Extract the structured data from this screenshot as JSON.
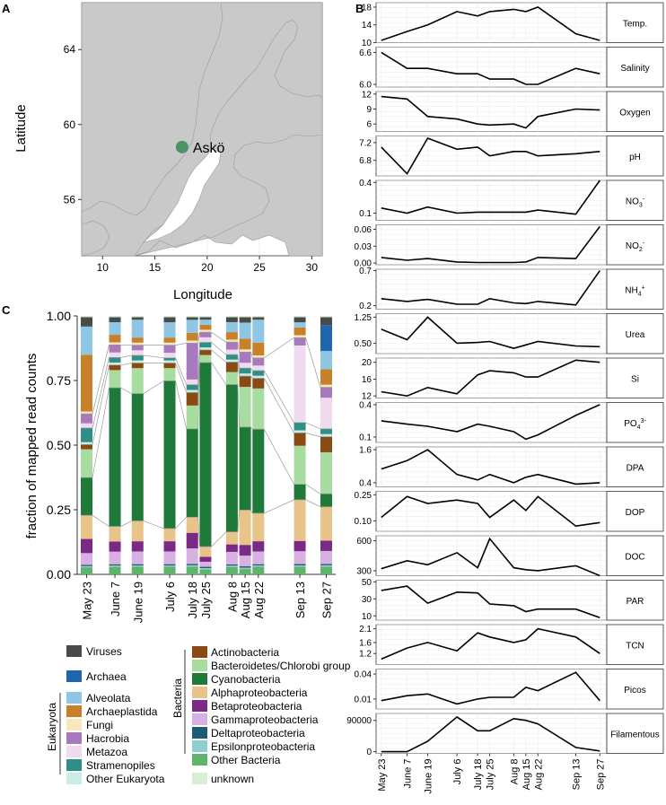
{
  "panels": {
    "a": "A",
    "b": "B",
    "c": "C"
  },
  "map": {
    "xlabel": "Longitude",
    "ylabel": "Latitude",
    "xticks": [
      10,
      15,
      20,
      25,
      30
    ],
    "yticks": [
      56,
      60,
      64
    ],
    "site_label": "Askö",
    "site_lon": 17.6,
    "site_lat": 58.8,
    "site_color": "#3d8c5a"
  },
  "dates": [
    "May 23",
    "June 7",
    "June 19",
    "July 6",
    "July 18",
    "July 25",
    "Aug 8",
    "Aug 15",
    "Aug 22",
    "Sep 13",
    "Sep 27"
  ],
  "chart_data": [
    {
      "type": "bar",
      "stacked": true,
      "title": "",
      "ylabel": "fraction of mapped read counts",
      "ylim": [
        0,
        1
      ],
      "yticks": [
        "0.00",
        "0.25",
        "0.50",
        "0.75",
        "1.00"
      ],
      "categories": [
        "May 23",
        "June 7",
        "June 19",
        "July 6",
        "July 18",
        "July 25",
        "Aug 8",
        "Aug 15",
        "Aug 22",
        "Sep 13",
        "Sep 27"
      ],
      "series": [
        {
          "name": "Other Bacteria",
          "color": "#5fb36a",
          "values": [
            0.03,
            0.03,
            0.03,
            0.03,
            0.03,
            0.02,
            0.03,
            0.02,
            0.03,
            0.03,
            0.03
          ]
        },
        {
          "name": "Epsilonproteobacteria",
          "color": "#8fcfd0",
          "values": [
            0.005,
            0.005,
            0.005,
            0.005,
            0.005,
            0.005,
            0.005,
            0.005,
            0.005,
            0.005,
            0.005
          ]
        },
        {
          "name": "Deltaproteobacteria",
          "color": "#1d5a73",
          "values": [
            0.005,
            0.005,
            0.005,
            0.005,
            0.005,
            0.005,
            0.005,
            0.005,
            0.005,
            0.005,
            0.005
          ]
        },
        {
          "name": "Gammaproteobacteria",
          "color": "#d7b1e2",
          "values": [
            0.05,
            0.05,
            0.05,
            0.05,
            0.06,
            0.02,
            0.05,
            0.04,
            0.05,
            0.05,
            0.05
          ]
        },
        {
          "name": "Betaproteobacteria",
          "color": "#7a2a86",
          "values": [
            0.06,
            0.04,
            0.04,
            0.04,
            0.06,
            0.02,
            0.03,
            0.04,
            0.04,
            0.04,
            0.04
          ]
        },
        {
          "name": "Alphaproteobacteria",
          "color": "#e8c38a",
          "values": [
            0.1,
            0.06,
            0.08,
            0.05,
            0.06,
            0.04,
            0.05,
            0.13,
            0.11,
            0.16,
            0.13
          ]
        },
        {
          "name": "Cyanobacteria",
          "color": "#1f7a3a",
          "values": [
            0.16,
            0.55,
            0.5,
            0.58,
            0.34,
            0.73,
            0.59,
            0.31,
            0.33,
            0.06,
            0.05
          ]
        },
        {
          "name": "Bacteroidetes/Chlorobi group",
          "color": "#a8dca0",
          "values": [
            0.12,
            0.07,
            0.1,
            0.05,
            0.09,
            0.03,
            0.05,
            0.15,
            0.16,
            0.15,
            0.16
          ]
        },
        {
          "name": "Actinobacteria",
          "color": "#8a4b12",
          "values": [
            0.02,
            0.02,
            0.02,
            0.02,
            0.05,
            0.02,
            0.04,
            0.04,
            0.04,
            0.05,
            0.06
          ]
        },
        {
          "name": "Other Eukaryota",
          "color": "#c9ece7",
          "values": [
            0.01,
            0.01,
            0.01,
            0.01,
            0.01,
            0.01,
            0.01,
            0.01,
            0.01,
            0.01,
            0.01
          ]
        },
        {
          "name": "Stramenopiles",
          "color": "#2e8f86",
          "values": [
            0.06,
            0.02,
            0.02,
            0.01,
            0.02,
            0.02,
            0.02,
            0.02,
            0.02,
            0.03,
            0.02
          ]
        },
        {
          "name": "Metazoa",
          "color": "#efdaee",
          "values": [
            0.02,
            0.02,
            0.02,
            0.02,
            0.02,
            0.02,
            0.02,
            0.02,
            0.02,
            0.3,
            0.12
          ]
        },
        {
          "name": "Hacrobia",
          "color": "#a77abd",
          "values": [
            0.04,
            0.03,
            0.02,
            0.03,
            0.14,
            0.02,
            0.03,
            0.04,
            0.03,
            0.03,
            0.04
          ]
        },
        {
          "name": "Fungi",
          "color": "#f6e7bd",
          "values": [
            0.01,
            0.01,
            0.01,
            0.01,
            0.01,
            0.01,
            0.01,
            0.01,
            0.01,
            0.01,
            0.01
          ]
        },
        {
          "name": "Archaeplastida",
          "color": "#c8802a",
          "values": [
            0.24,
            0.03,
            0.02,
            0.02,
            0.03,
            0.02,
            0.03,
            0.04,
            0.05,
            0.03,
            0.06
          ]
        },
        {
          "name": "Alveolata",
          "color": "#8ec6e3",
          "values": [
            0.12,
            0.05,
            0.07,
            0.06,
            0.05,
            0.02,
            0.04,
            0.06,
            0.09,
            0.02,
            0.07
          ]
        },
        {
          "name": "Archaea",
          "color": "#1f66ad",
          "values": [
            0.0,
            0.0,
            0.0,
            0.0,
            0.0,
            0.0,
            0.0,
            0.0,
            0.0,
            0.0,
            0.1
          ]
        },
        {
          "name": "Viruses",
          "color": "#4a4a4a",
          "values": [
            0.04,
            0.02,
            0.01,
            0.02,
            0.01,
            0.01,
            0.02,
            0.02,
            0.01,
            0.02,
            0.03
          ]
        },
        {
          "name": "unknown",
          "color": "#d9efd4",
          "values": [
            0.005,
            0.005,
            0.005,
            0.005,
            0.005,
            0.005,
            0.005,
            0.005,
            0.005,
            0.005,
            0.005
          ]
        }
      ]
    },
    {
      "type": "line",
      "label": "Temp.",
      "ylim": [
        10,
        19
      ],
      "yticks": [
        10,
        14,
        18
      ],
      "values": [
        10.5,
        12.5,
        14,
        17,
        16,
        17,
        17.5,
        17,
        18,
        12,
        10.5
      ]
    },
    {
      "type": "line",
      "label": "Salinity",
      "ylim": [
        5.95,
        6.7
      ],
      "yticks": [
        "6.0",
        "6.6"
      ],
      "values": [
        6.6,
        6.3,
        6.3,
        6.2,
        6.2,
        6.1,
        6.1,
        6.0,
        6.0,
        6.3,
        6.2
      ]
    },
    {
      "type": "line",
      "label": "Oxygen",
      "ylim": [
        4.5,
        12.5
      ],
      "yticks": [
        6,
        9,
        12
      ],
      "values": [
        11.5,
        11,
        7.5,
        7,
        6,
        5.8,
        6,
        5.2,
        7.5,
        9,
        8.8
      ]
    },
    {
      "type": "line",
      "label": "pH",
      "ylim": [
        6.45,
        7.35
      ],
      "yticks": [
        "6.8",
        "7.2"
      ],
      "values": [
        7.1,
        6.5,
        7.3,
        7.05,
        7.1,
        6.9,
        7.0,
        7.0,
        6.9,
        6.95,
        7.0
      ]
    },
    {
      "type": "line",
      "label": "NO3-",
      "ylim": [
        0.03,
        0.42
      ],
      "yticks": [
        "0.1",
        "0.4"
      ],
      "values": [
        0.15,
        0.1,
        0.16,
        0.1,
        0.11,
        0.11,
        0.11,
        0.11,
        0.13,
        0.09,
        0.42
      ]
    },
    {
      "type": "line",
      "label": "NO2-",
      "ylim": [
        -0.003,
        0.068
      ],
      "yticks": [
        "0.00",
        "0.03",
        "0.06"
      ],
      "values": [
        0.01,
        0.005,
        0.008,
        0.002,
        0.001,
        0.001,
        0.001,
        0.002,
        0.01,
        0.008,
        0.065
      ]
    },
    {
      "type": "line",
      "label": "NH4+",
      "ylim": [
        0.15,
        0.72
      ],
      "yticks": [
        "0.2",
        "0.7"
      ],
      "values": [
        0.3,
        0.26,
        0.29,
        0.22,
        0.22,
        0.3,
        0.24,
        0.23,
        0.26,
        0.21,
        0.7
      ]
    },
    {
      "type": "line",
      "label": "Urea",
      "ylim": [
        0.2,
        1.35
      ],
      "yticks": [
        "0.50",
        "1.25"
      ],
      "values": [
        0.9,
        0.6,
        1.25,
        0.5,
        0.52,
        0.55,
        0.35,
        0.45,
        0.55,
        0.42,
        0.4
      ]
    },
    {
      "type": "line",
      "label": "Si",
      "ylim": [
        11.5,
        21
      ],
      "yticks": [
        12,
        16,
        20
      ],
      "values": [
        13,
        12,
        14,
        12.5,
        17,
        18,
        17.5,
        16.5,
        16.5,
        20.5,
        20
      ]
    },
    {
      "type": "line",
      "label": "PO43-",
      "ylim": [
        0.05,
        0.42
      ],
      "yticks": [
        "0.1",
        "0.4"
      ],
      "values": [
        0.25,
        0.22,
        0.2,
        0.15,
        0.22,
        0.2,
        0.15,
        0.08,
        0.12,
        0.3,
        0.4
      ]
    },
    {
      "type": "line",
      "label": "DPA",
      "ylim": [
        0.25,
        1.7
      ],
      "yticks": [
        "0.4",
        "1.6"
      ],
      "values": [
        0.9,
        1.2,
        1.6,
        0.7,
        0.5,
        0.7,
        0.4,
        0.6,
        0.7,
        0.35,
        0.4
      ]
    },
    {
      "type": "line",
      "label": "DOP",
      "ylim": [
        0.04,
        0.27
      ],
      "yticks": [
        "0.10",
        "0.25"
      ],
      "values": [
        0.12,
        0.24,
        0.2,
        0.22,
        0.2,
        0.12,
        0.22,
        0.16,
        0.24,
        0.07,
        0.09
      ]
    },
    {
      "type": "line",
      "label": "DOC",
      "ylim": [
        250,
        650
      ],
      "yticks": [
        300,
        600
      ],
      "values": [
        320,
        400,
        360,
        480,
        330,
        620,
        330,
        310,
        300,
        350,
        250
      ]
    },
    {
      "type": "line",
      "label": "PAR",
      "ylim": [
        5,
        52
      ],
      "yticks": [
        10,
        30,
        50
      ],
      "values": [
        40,
        45,
        25,
        38,
        37,
        24,
        22,
        15,
        18,
        18,
        8
      ]
    },
    {
      "type": "line",
      "label": "TCN",
      "ylim": [
        0.8,
        2.25
      ],
      "yticks": [
        "1.2",
        "1.6",
        "2.1"
      ],
      "values": [
        1.0,
        1.4,
        1.6,
        1.3,
        1.95,
        1.8,
        1.6,
        1.7,
        2.1,
        1.8,
        1.2
      ]
    },
    {
      "type": "line",
      "label": "Picos",
      "ylim": [
        -0.002,
        0.046
      ],
      "yticks": [
        "0.01",
        "0.04"
      ],
      "values": [
        0.008,
        0.014,
        0.016,
        0.004,
        0.01,
        0.012,
        0.012,
        0.024,
        0.02,
        0.042,
        0.008
      ]
    },
    {
      "type": "line",
      "label": "Filamentous",
      "ylim": [
        -5000,
        110000
      ],
      "yticks": [
        "0",
        "90000"
      ],
      "values": [
        0,
        0,
        30000,
        100000,
        60000,
        60000,
        95000,
        90000,
        80000,
        12000,
        2000
      ]
    }
  ],
  "legend": {
    "group_eukaryota": "Eukaryota",
    "group_bacteria": "Bacteria",
    "col1": [
      {
        "name": "Viruses",
        "color": "#4a4a4a"
      },
      {
        "name": "Archaea",
        "color": "#1f66ad"
      },
      {
        "name": "Alveolata",
        "color": "#8ec6e3"
      },
      {
        "name": "Archaeplastida",
        "color": "#c8802a"
      },
      {
        "name": "Fungi",
        "color": "#f6e7bd"
      },
      {
        "name": "Hacrobia",
        "color": "#a77abd"
      },
      {
        "name": "Metazoa",
        "color": "#efdaee"
      },
      {
        "name": "Stramenopiles",
        "color": "#2e8f86"
      },
      {
        "name": "Other Eukaryota",
        "color": "#c9ece7"
      }
    ],
    "col2": [
      {
        "name": "Actinobacteria",
        "color": "#8a4b12"
      },
      {
        "name": "Bacteroidetes/Chlorobi group",
        "color": "#a8dca0"
      },
      {
        "name": "Cyanobacteria",
        "color": "#1f7a3a"
      },
      {
        "name": "Alphaproteobacteria",
        "color": "#e8c38a"
      },
      {
        "name": "Betaproteobacteria",
        "color": "#7a2a86"
      },
      {
        "name": "Gammaproteobacteria",
        "color": "#d7b1e2"
      },
      {
        "name": "Deltaproteobacteria",
        "color": "#1d5a73"
      },
      {
        "name": "Epsilonproteobacteria",
        "color": "#8fcfd0"
      },
      {
        "name": "Other Bacteria",
        "color": "#5fb36a"
      },
      {
        "name": "unknown",
        "color": "#d9efd4"
      }
    ]
  }
}
